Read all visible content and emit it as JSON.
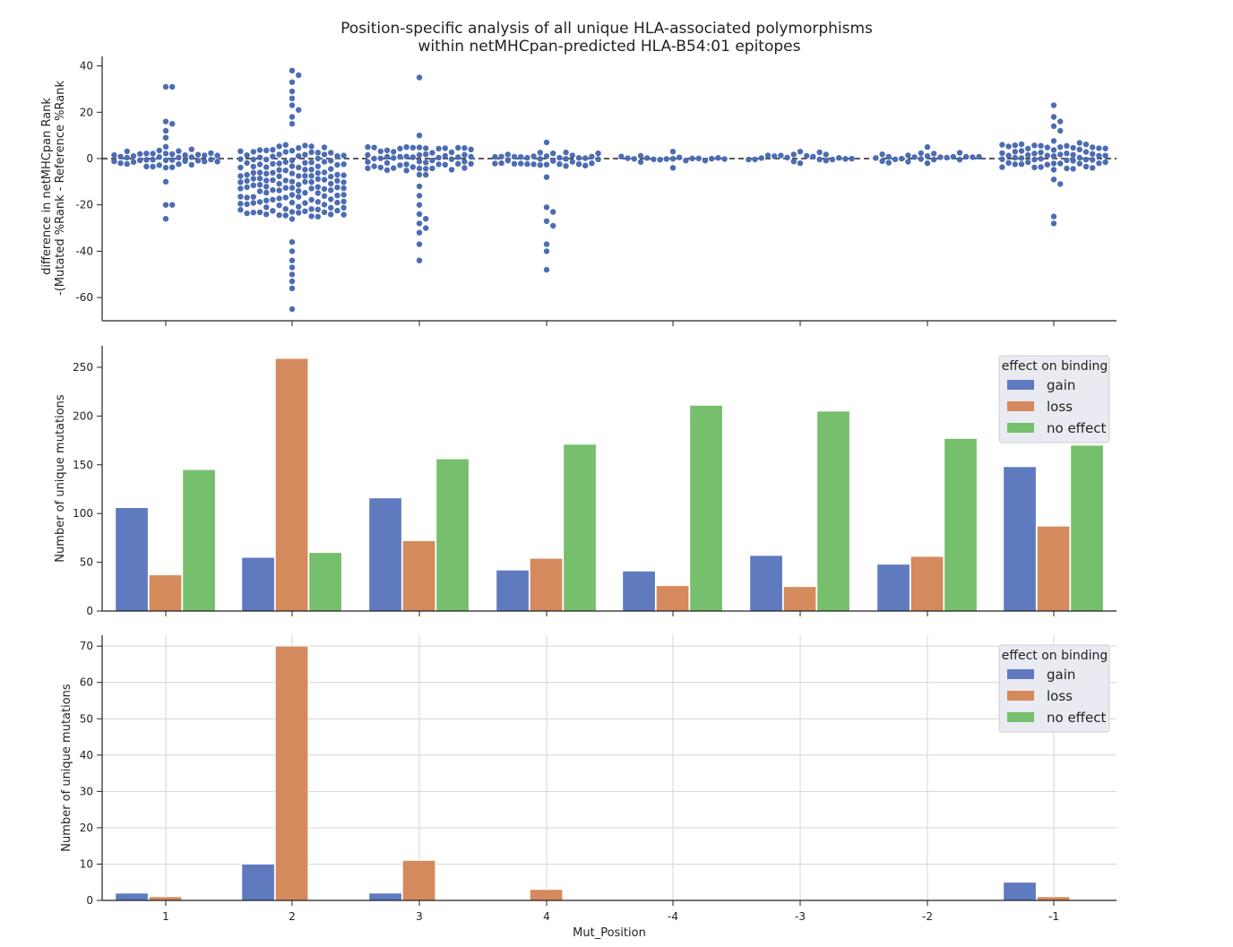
{
  "figure": {
    "title_line1": "Position-specific analysis of all unique HLA-associated polymorphisms",
    "title_line2": "within netMHCpan-predicted HLA-B54:01 epitopes"
  },
  "chart_data": [
    {
      "type": "scatter",
      "subtype": "swarm",
      "ylabel_line1": "difference in netMHCpan Rank",
      "ylabel_line2": "-(Mutated %Rank - Reference %Rank",
      "categories": [
        "1",
        "2",
        "3",
        "4",
        "-4",
        "-3",
        "-2",
        "-1"
      ],
      "ylim": [
        -70,
        45
      ],
      "yticks": [
        40,
        20,
        0,
        -20,
        -40,
        -60
      ],
      "reference_line": 0,
      "point_color": "#4c6cb3",
      "series": [
        {
          "category": "1",
          "core_spread": [
            -5,
            6
          ],
          "upper_tail": [
            31,
            31,
            16,
            15,
            12,
            9
          ],
          "lower_tail": [
            -10,
            -20,
            -20,
            -26
          ],
          "n": 120
        },
        {
          "category": "2",
          "core_spread": [
            -30,
            10
          ],
          "upper_tail": [
            38,
            36,
            33,
            29,
            26,
            23,
            21,
            18,
            15
          ],
          "lower_tail": [
            -36,
            -40,
            -44,
            -47,
            -50,
            -53,
            -56,
            -65
          ],
          "n": 470
        },
        {
          "category": "3",
          "core_spread": [
            -8,
            8
          ],
          "upper_tail": [
            35,
            10
          ],
          "lower_tail": [
            -12,
            -16,
            -20,
            -24,
            -26,
            -28,
            -30,
            -32,
            -37,
            -44
          ],
          "n": 180
        },
        {
          "category": "4",
          "core_spread": [
            -4,
            4
          ],
          "upper_tail": [
            7
          ],
          "lower_tail": [
            -8,
            -21,
            -23,
            -27,
            -29,
            -37,
            -40,
            -48
          ],
          "n": 110
        },
        {
          "category": "-4",
          "core_spread": [
            -2,
            2
          ],
          "upper_tail": [
            3
          ],
          "lower_tail": [
            -4
          ],
          "n": 45
        },
        {
          "category": "-3",
          "core_spread": [
            -2,
            3
          ],
          "upper_tail": [
            3
          ],
          "lower_tail": [
            -2
          ],
          "n": 70
        },
        {
          "category": "-2",
          "core_spread": [
            -2,
            3
          ],
          "upper_tail": [
            5
          ],
          "lower_tail": [
            -2
          ],
          "n": 70
        },
        {
          "category": "-1",
          "core_spread": [
            -6,
            8
          ],
          "upper_tail": [
            23,
            18,
            16,
            14,
            12
          ],
          "lower_tail": [
            -9,
            -11,
            -25,
            -28
          ],
          "n": 220
        }
      ],
      "grid": false
    },
    {
      "type": "bar",
      "ylabel": "Number of unique mutations",
      "categories": [
        "1",
        "2",
        "3",
        "4",
        "-4",
        "-3",
        "-2",
        "-1"
      ],
      "ylim": [
        0,
        272
      ],
      "yticks": [
        0,
        50,
        100,
        150,
        200,
        250
      ],
      "series": [
        {
          "name": "gain",
          "color": "#5f7abf",
          "values": [
            106,
            55,
            116,
            42,
            41,
            57,
            48,
            148
          ]
        },
        {
          "name": "loss",
          "color": "#d48a5c",
          "values": [
            37,
            259,
            72,
            54,
            26,
            25,
            56,
            87
          ]
        },
        {
          "name": "no effect",
          "color": "#76bf6c",
          "values": [
            145,
            60,
            156,
            171,
            211,
            205,
            177,
            170
          ]
        }
      ],
      "legend": {
        "title": "effect on binding",
        "placement": "top-right"
      },
      "grid": false
    },
    {
      "type": "bar",
      "ylabel": "Number of unique mutations",
      "xlabel": "Mut_Position",
      "categories": [
        "1",
        "2",
        "3",
        "4",
        "-4",
        "-3",
        "-2",
        "-1"
      ],
      "ylim": [
        0,
        73
      ],
      "yticks": [
        0,
        10,
        20,
        30,
        40,
        50,
        60,
        70
      ],
      "series": [
        {
          "name": "gain",
          "color": "#5f7abf",
          "values": [
            2,
            10,
            2,
            0,
            0,
            0,
            0,
            5
          ]
        },
        {
          "name": "loss",
          "color": "#d48a5c",
          "values": [
            1,
            70,
            11,
            3,
            0,
            0,
            0,
            1
          ]
        },
        {
          "name": "no effect",
          "color": "#76bf6c",
          "values": [
            0,
            0,
            0,
            0,
            0,
            0,
            0,
            0
          ]
        }
      ],
      "legend": {
        "title": "effect on binding",
        "placement": "top-right"
      },
      "grid": true
    }
  ]
}
